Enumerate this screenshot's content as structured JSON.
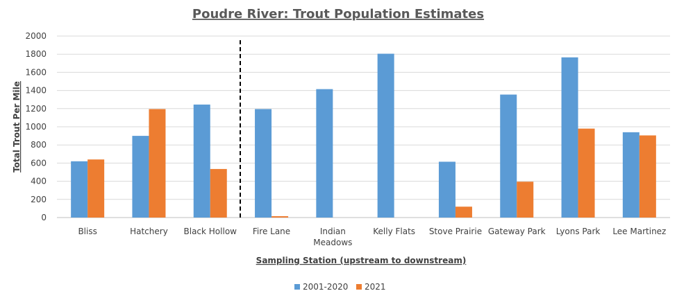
{
  "chart_data": {
    "type": "bar",
    "title": "Poudre River: Trout Population Estimates",
    "xlabel": "Sampling Station (upstream to downstream)",
    "ylabel": "Total Trout Per Mile",
    "categories": [
      "Bliss",
      "Hatchery",
      "Black Hollow",
      "Fire Lane",
      "Indian Meadows",
      "Kelly Flats",
      "Stove Prairie",
      "Gateway Park",
      "Lyons Park",
      "Lee Martinez"
    ],
    "series": [
      {
        "name": "2001-2020",
        "color": "#5B9BD5",
        "values": [
          620,
          900,
          1245,
          1195,
          1415,
          1805,
          615,
          1355,
          1765,
          940
        ]
      },
      {
        "name": "2021",
        "color": "#ED7D31",
        "values": [
          640,
          1195,
          535,
          15,
          0,
          0,
          120,
          395,
          980,
          905
        ]
      }
    ],
    "ylim": [
      0,
      2000
    ],
    "yticks": [
      0,
      200,
      400,
      600,
      800,
      1000,
      1200,
      1400,
      1600,
      1800,
      2000
    ],
    "grid": true,
    "legend": "bottom-center",
    "annotation": "dashed vertical divider between Black Hollow and Fire Lane"
  }
}
